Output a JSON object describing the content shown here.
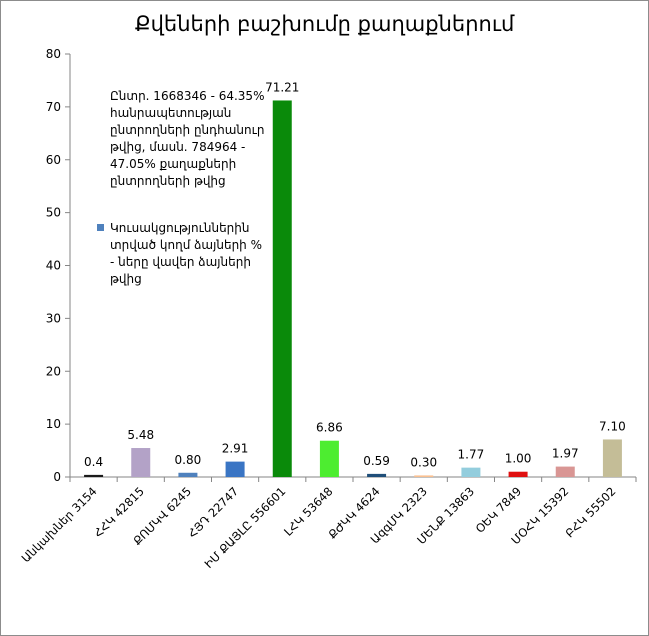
{
  "chart_data": {
    "type": "bar",
    "title": "Քվեների բաշխումը քաղաքներում",
    "categories": [
      "Անկախներ 3154",
      "ՀՀԿ 42815",
      "ՔՈՄԿՎ 6245",
      "ՀՅԴ 22747",
      "ԻՄ ՔԱՅԼԸ 556601",
      "ԼՀԿ 53648",
      "ՔԺԿԿ 4624",
      "ԱզգՄԿ 2323",
      "ՄԵՆՔ 13863",
      "ՕԵԿ 7849",
      "ՄՕՀԿ 15392",
      "ԲՀԿ 55502"
    ],
    "values": [
      0.4,
      5.48,
      0.8,
      2.91,
      71.21,
      6.86,
      0.59,
      0.3,
      1.77,
      1.0,
      1.97,
      7.1
    ],
    "value_labels": [
      "0.4",
      "5.48",
      "0.80",
      "2.91",
      "71.21",
      "6.86",
      "0.59",
      "0.30",
      "1.77",
      "1.00",
      "1.97",
      "7.10"
    ],
    "colors": [
      "#1a1a1a",
      "#b3a2c7",
      "#4f81bd",
      "#3a75c4",
      "#0a8a0a",
      "#4ded30",
      "#1f4e79",
      "#fac090",
      "#93cddd",
      "#e01010",
      "#d99694",
      "#c4bd97"
    ],
    "ylim": [
      0,
      80
    ],
    "yticks": [
      0,
      10,
      20,
      30,
      40,
      50,
      60,
      70,
      80
    ],
    "grid": false,
    "legend": {
      "position": "left",
      "entries": [
        {
          "name": "Կուսակցություններին տրված կողմ ձայների % - ները վավեր ձայների թվից",
          "color": "#4f81bd"
        }
      ]
    },
    "annotations": [
      "Ընտր. 1668346 - 64.35% հանրապետության ընտրողների ընդհանուր թվից, մասն. 784964 - 47.05% քաղաքների ընտրողների թվից"
    ]
  }
}
